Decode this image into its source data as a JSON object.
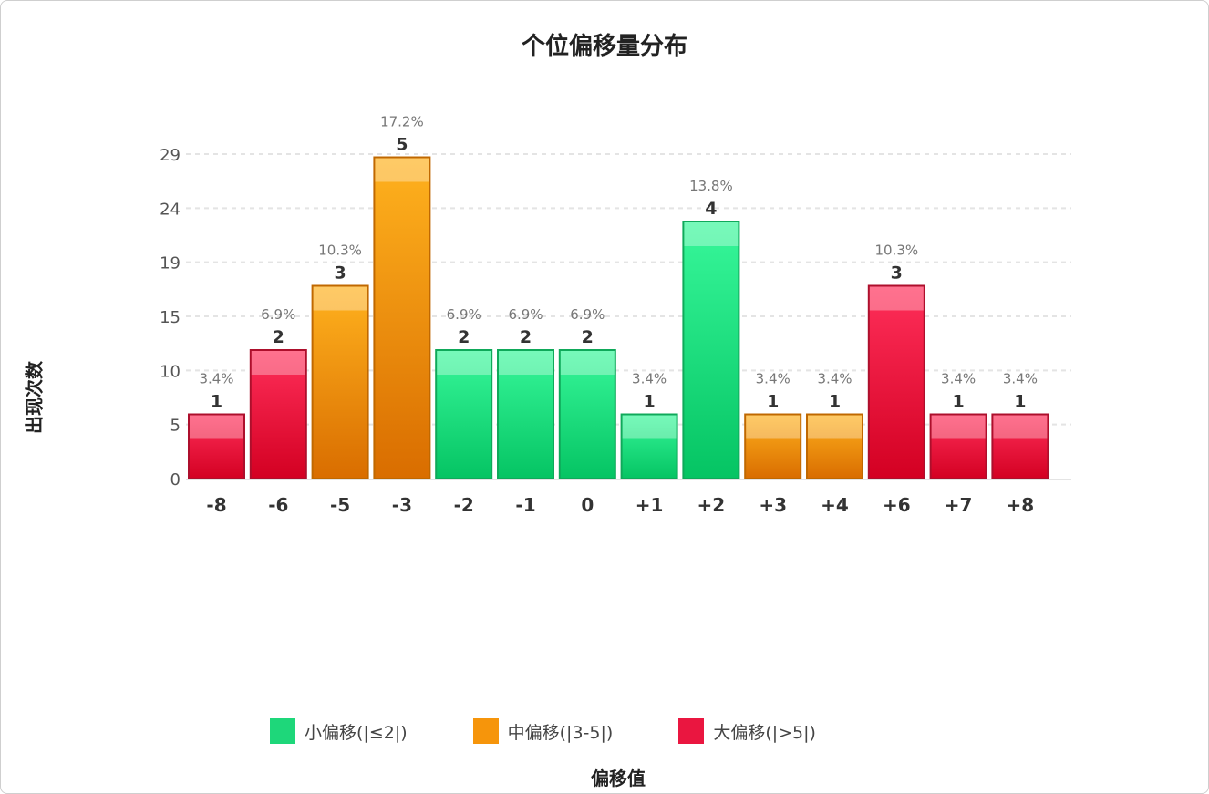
{
  "chart_data": {
    "type": "bar",
    "title": "个位偏移量分布",
    "xlabel": "偏移值",
    "ylabel": "出现次数",
    "categories": [
      "-8",
      "-6",
      "-5",
      "-3",
      "-2",
      "-1",
      "0",
      "+1",
      "+2",
      "+3",
      "+4",
      "+6",
      "+7",
      "+8"
    ],
    "values": [
      1,
      2,
      3,
      5,
      2,
      2,
      2,
      1,
      4,
      1,
      1,
      3,
      1,
      1
    ],
    "percent_labels": [
      "3.4%",
      "6.9%",
      "10.3%",
      "17.2%",
      "6.9%",
      "6.9%",
      "6.9%",
      "3.4%",
      "13.8%",
      "3.4%",
      "3.4%",
      "10.3%",
      "3.4%",
      "3.4%"
    ],
    "groups": [
      "large",
      "large",
      "medium",
      "medium",
      "small",
      "small",
      "small",
      "small",
      "small",
      "medium",
      "medium",
      "large",
      "large",
      "large"
    ],
    "y_ticks": [
      "0",
      "5",
      "10",
      "15",
      "19",
      "24",
      "29"
    ],
    "legend": [
      {
        "key": "small",
        "label": "小偏移(|≤2|)",
        "color": "#1ed77a"
      },
      {
        "key": "medium",
        "label": "中偏移(|3-5|)",
        "color": "#f6950b"
      },
      {
        "key": "large",
        "label": "大偏移(|>5|)",
        "color": "#ea1640"
      }
    ],
    "legend_position": "bottom",
    "grid": true
  }
}
